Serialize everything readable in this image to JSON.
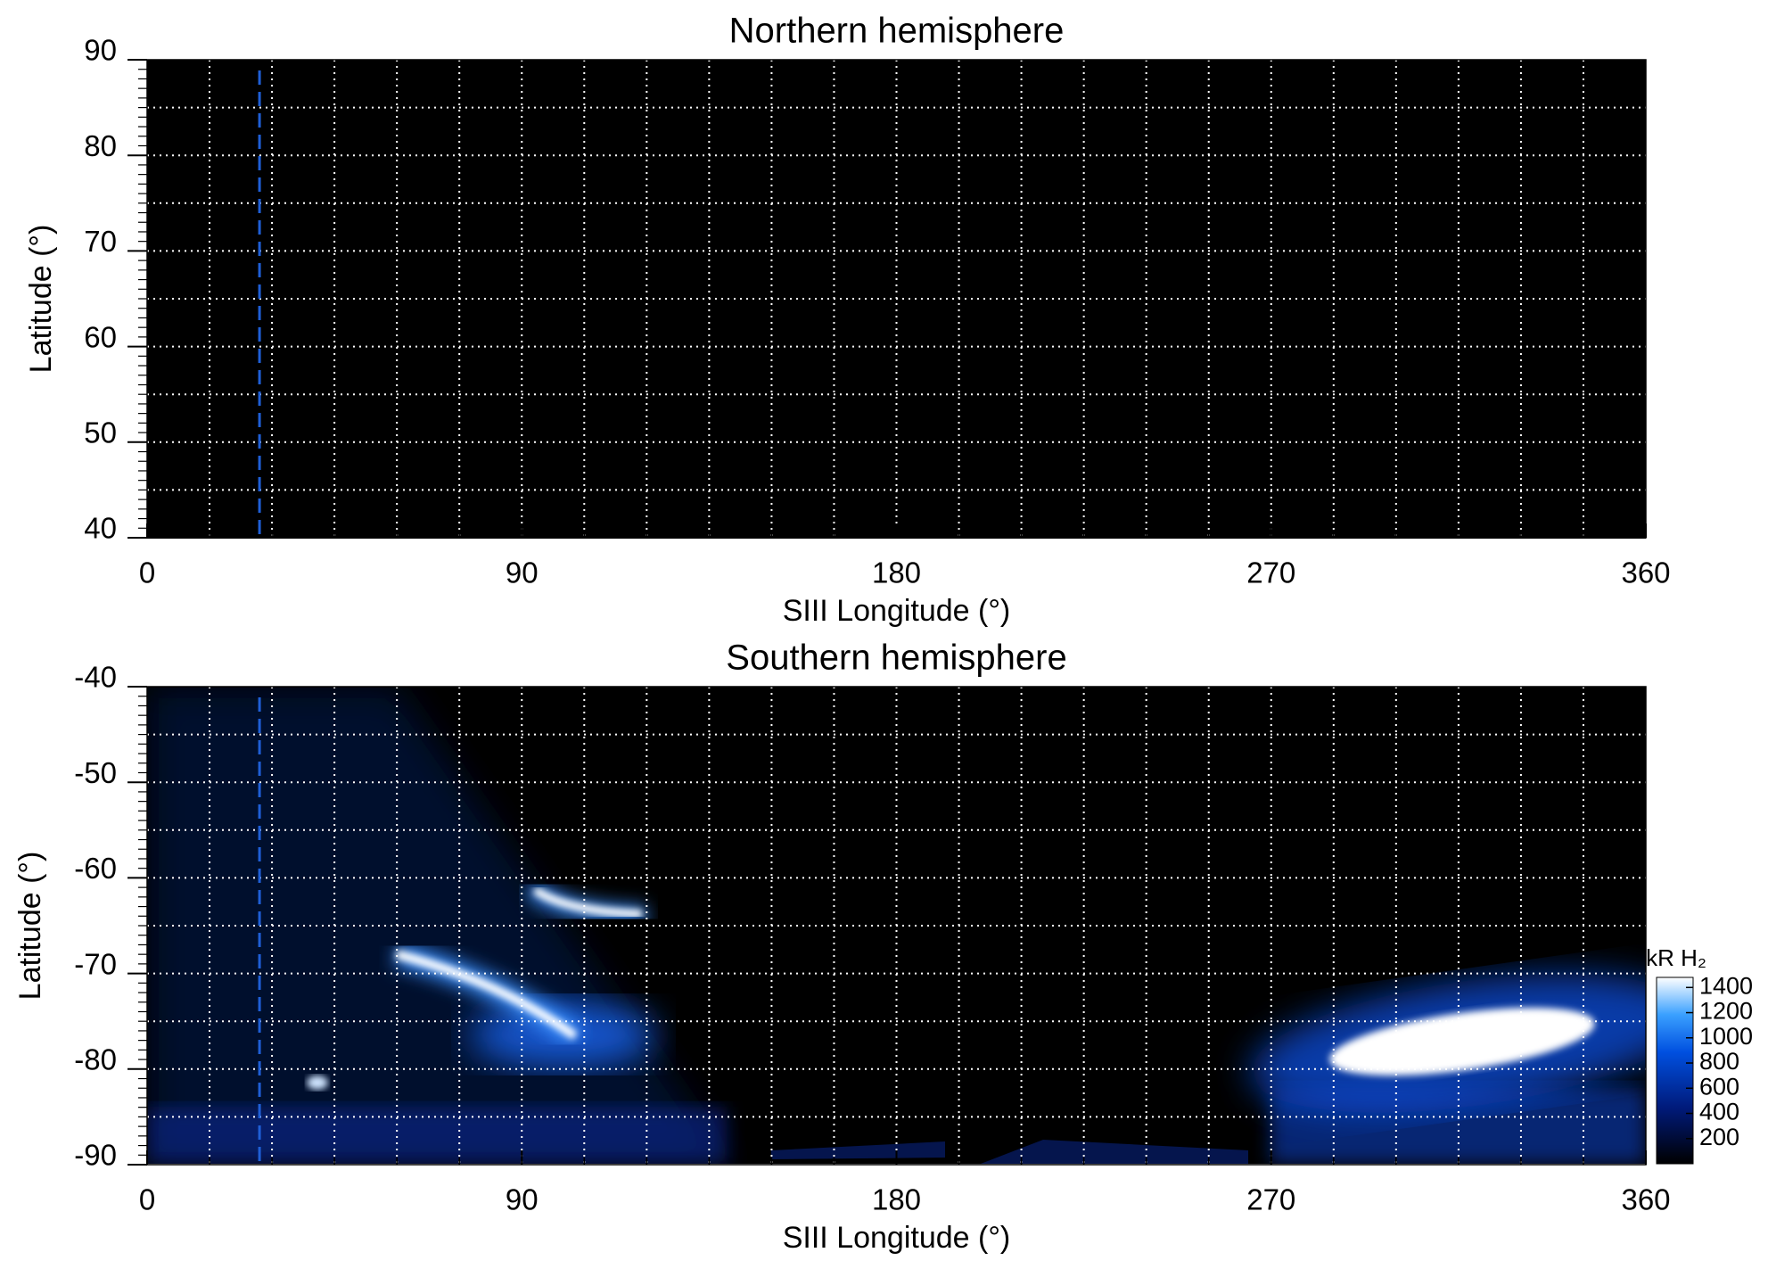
{
  "chart_data": [
    {
      "type": "heatmap",
      "title": "Northern hemisphere",
      "xlabel": "SIII Longitude (°)",
      "ylabel": "Latitude (°)",
      "xlim": [
        0,
        360
      ],
      "xticks": [
        0,
        90,
        180,
        270,
        360
      ],
      "ylim": [
        40,
        90
      ],
      "yticks": [
        40,
        50,
        60,
        70,
        80,
        90
      ],
      "xgrid_step": 15,
      "ygrid_step": 5,
      "yminor_step": 1,
      "grid": true,
      "marker_longitude": 27,
      "marker_color": "#1f5fd6"
    },
    {
      "type": "heatmap",
      "title": "Southern hemisphere",
      "xlabel": "SIII Longitude (°)",
      "ylabel": "Latitude (°)",
      "xlim": [
        0,
        360
      ],
      "xticks": [
        0,
        90,
        180,
        270,
        360
      ],
      "ylim": [
        -90,
        -40
      ],
      "yticks": [
        -90,
        -80,
        -70,
        -60,
        -50,
        -40
      ],
      "xgrid_step": 15,
      "ygrid_step": 5,
      "yminor_step": 1,
      "grid": true,
      "marker_longitude": 27,
      "marker_color": "#1f5fd6",
      "colorbar": {
        "label": "kR H₂",
        "lim": [
          0,
          1480
        ],
        "ticks": [
          200,
          400,
          600,
          800,
          1000,
          1200,
          1400
        ]
      }
    }
  ]
}
